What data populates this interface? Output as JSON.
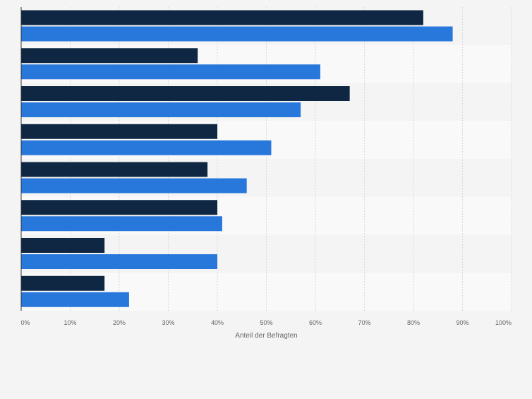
{
  "chart_data": {
    "type": "bar",
    "orientation": "horizontal",
    "categories": [
      "",
      "",
      "",
      "",
      "",
      "",
      "",
      ""
    ],
    "series": [
      {
        "values": [
          82,
          36,
          67,
          40,
          38,
          40,
          17,
          17
        ]
      },
      {
        "values": [
          88,
          61,
          57,
          51,
          46,
          41,
          40,
          22
        ]
      }
    ],
    "xlabel": "Anteil der Befragten",
    "ylabel": "",
    "xlim": [
      0,
      100
    ],
    "ticks": [
      0,
      10,
      20,
      30,
      40,
      50,
      60,
      70,
      80,
      90,
      100
    ],
    "tick_labels": [
      "0%",
      "10%",
      "20%",
      "30%",
      "40%",
      "50%",
      "60%",
      "70%",
      "80%",
      "90%",
      "100%"
    ],
    "grid": true,
    "legend": "none",
    "colors": {
      "series_0": "#0f2742",
      "series_1": "#2878dc",
      "band_a": "#f4f4f4",
      "band_b": "#f9f9f9",
      "grid": "#d8d8d8",
      "axis": "#333333",
      "tick_text": "#666666"
    }
  }
}
